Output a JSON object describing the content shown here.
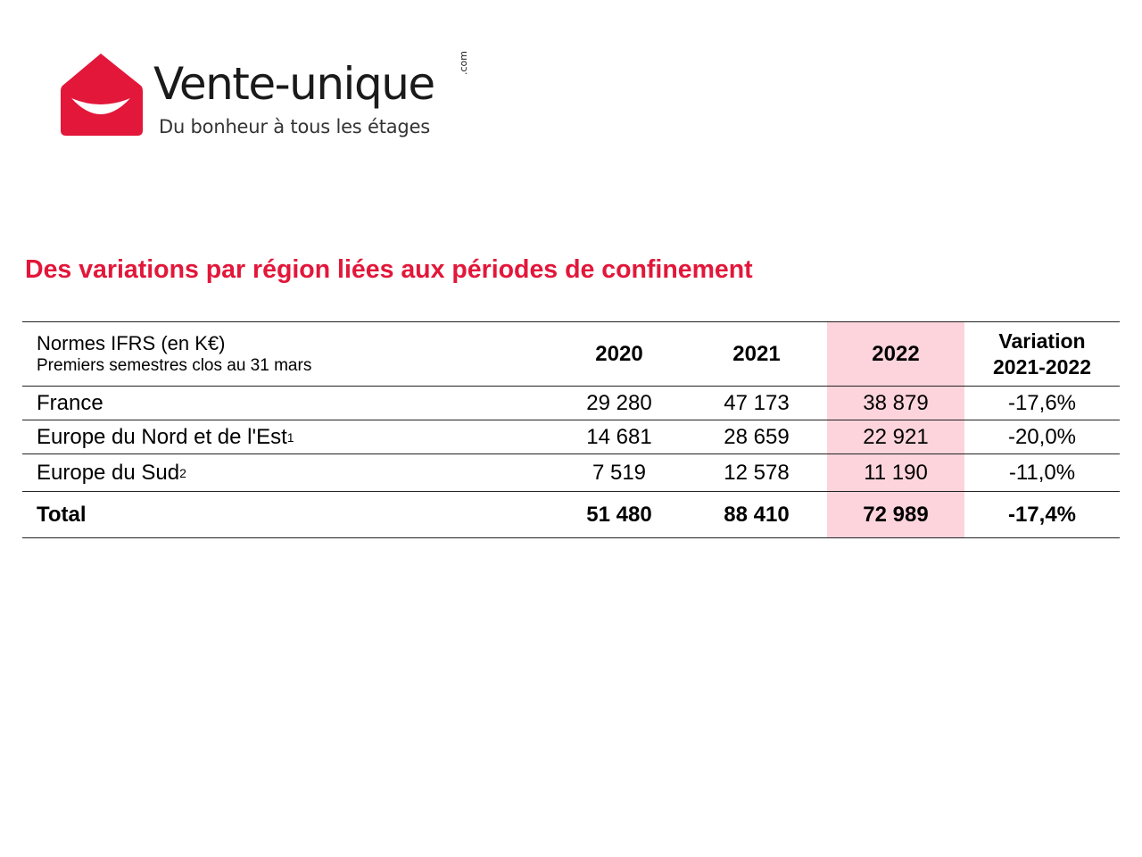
{
  "logo": {
    "name": "Vente-unique",
    "com": ".com",
    "tagline": "Du bonheur à tous les étages",
    "brand_color": "#e2173a",
    "icon": "smiling-house-icon"
  },
  "title": "Des variations par région liées aux périodes de confinement",
  "table": {
    "header": {
      "label_line1": "Normes IFRS (en K€)",
      "label_line2": "Premiers semestres clos au 31 mars",
      "col_2020": "2020",
      "col_2021": "2021",
      "col_2022": "2022",
      "col_var_line1": "Variation",
      "col_var_line2": "2021-2022"
    },
    "highlight_color": "#fdd4dc",
    "rows": [
      {
        "label": "France",
        "sup": "",
        "v2020": "29 280",
        "v2021": "47 173",
        "v2022": "38 879",
        "variation": "-17,6%"
      },
      {
        "label": "Europe du Nord et de l'Est",
        "sup": "1",
        "v2020": "14 681",
        "v2021": "28 659",
        "v2022": "22 921",
        "variation": "-20,0%"
      },
      {
        "label": "Europe du Sud",
        "sup": "2",
        "v2020": "7 519",
        "v2021": "12 578",
        "v2022": "11 190",
        "variation": "-11,0%"
      }
    ],
    "total": {
      "label": "Total",
      "v2020": "51 480",
      "v2021": "88 410",
      "v2022": "72 989",
      "variation": "-17,4%"
    }
  }
}
